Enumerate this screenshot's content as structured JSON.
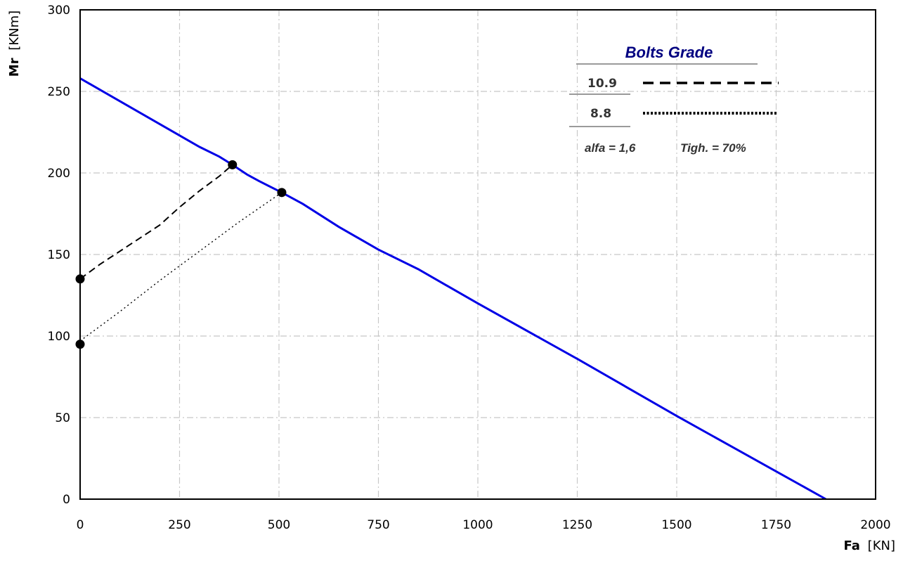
{
  "chart_data": {
    "type": "line",
    "xlabel_bold": "Fa",
    "xlabel_unit": "[KN]",
    "ylabel_bold": "Mr",
    "ylabel_unit": "[KNm]",
    "xlim": [
      0,
      2000
    ],
    "ylim": [
      0,
      300
    ],
    "x_ticks": [
      "0",
      "250",
      "500",
      "750",
      "1000",
      "1250",
      "1500",
      "1750",
      "2000"
    ],
    "y_ticks": [
      "0",
      "50",
      "100",
      "150",
      "200",
      "250",
      "300"
    ],
    "grid": true,
    "legend": {
      "title": "Bolts Grade",
      "entries": [
        "10.9",
        "8.8"
      ],
      "note_alfa": "alfa = 1,6",
      "note_tigh": "Tigh. = 70%"
    },
    "series": [
      {
        "style": "solid",
        "color": "#0000e6",
        "x": [
          0,
          50,
          100,
          150,
          200,
          250,
          300,
          350,
          383,
          420,
          450,
          507,
          560,
          650,
          750,
          850,
          1000,
          1250,
          1500,
          1750,
          1875
        ],
        "y": [
          258,
          251,
          244,
          237,
          230,
          223,
          216,
          210,
          205,
          199,
          195,
          188,
          181,
          167,
          153,
          141,
          120,
          86,
          51,
          17,
          0
        ]
      },
      {
        "style": "dashed",
        "color": "#000000",
        "x": [
          0,
          50,
          100,
          150,
          200,
          250,
          300,
          350,
          383
        ],
        "y": [
          135,
          144,
          152,
          160,
          168,
          179,
          189,
          198,
          205
        ]
      },
      {
        "style": "dotted",
        "color": "#000000",
        "x": [
          0,
          100,
          200,
          300,
          400,
          507
        ],
        "y": [
          97,
          115,
          134,
          152,
          170,
          188
        ]
      }
    ],
    "markers": [
      {
        "x": 0,
        "y": 135
      },
      {
        "x": 0,
        "y": 95
      },
      {
        "x": 383,
        "y": 205
      },
      {
        "x": 507,
        "y": 188
      }
    ]
  }
}
